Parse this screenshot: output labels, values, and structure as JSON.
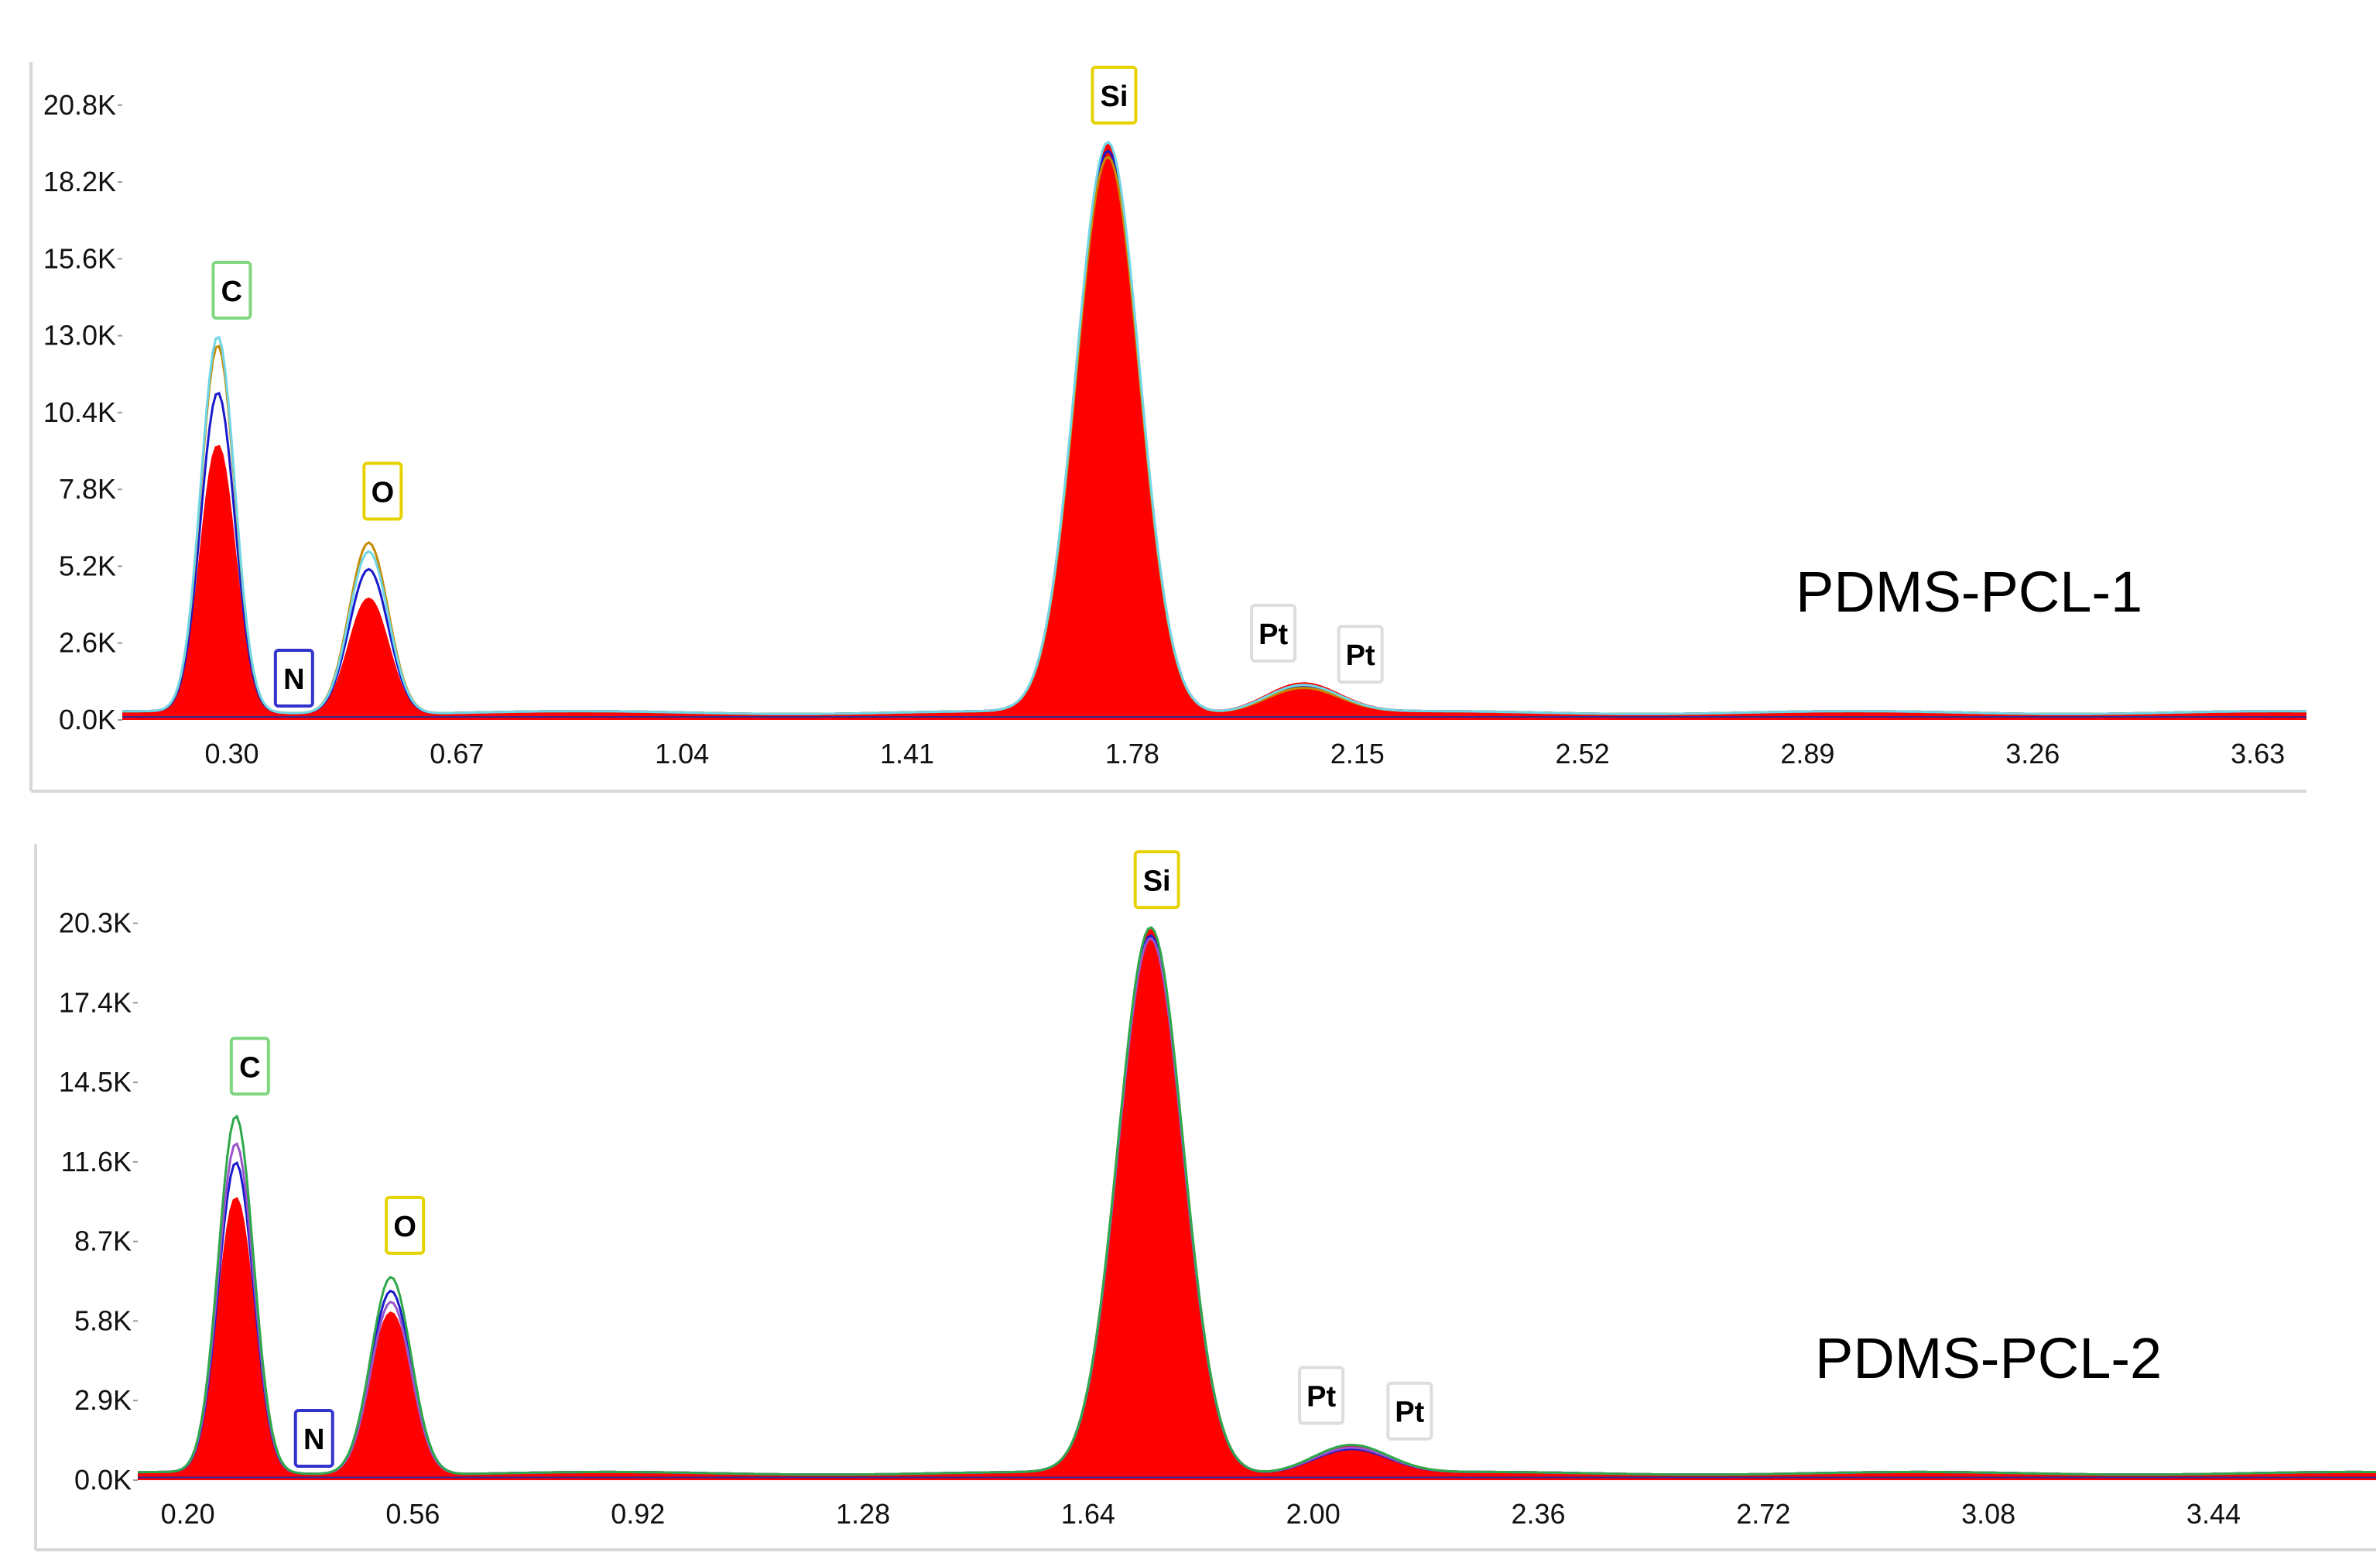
{
  "chart_data": [
    {
      "type": "area",
      "title": "",
      "sample_label": "PDMS-PCL-1",
      "xlabel": "",
      "ylabel": "",
      "xlim": [
        0.12,
        3.71
      ],
      "ylim": [
        0,
        22000
      ],
      "y_ticks": [
        "0.0K",
        "2.6K",
        "5.2K",
        "7.8K",
        "10.4K",
        "13.0K",
        "15.6K",
        "18.2K",
        "20.8K"
      ],
      "y_tick_values": [
        0,
        2600,
        5200,
        7800,
        10400,
        13000,
        15600,
        18200,
        20800
      ],
      "x_ticks": [
        "0.30",
        "0.67",
        "1.04",
        "1.41",
        "1.78",
        "2.15",
        "2.52",
        "2.89",
        "3.26",
        "3.63"
      ],
      "x_tick_values": [
        0.3,
        0.67,
        1.04,
        1.41,
        1.78,
        2.15,
        2.52,
        2.89,
        3.26,
        3.63
      ],
      "peaks": [
        {
          "element": "C",
          "energy": 0.277,
          "counts": 12600,
          "color": "#7fd67f"
        },
        {
          "element": "N",
          "energy": 0.392,
          "counts": 300,
          "color": "#3333cc"
        },
        {
          "element": "O",
          "energy": 0.525,
          "counts": 5800,
          "color": "#e6d200"
        },
        {
          "element": "Si",
          "energy": 1.74,
          "counts": 19200,
          "color": "#e6d200"
        },
        {
          "element": "Pt",
          "energy": 2.05,
          "counts": 1000,
          "color": "#dddddd"
        },
        {
          "element": "Pt",
          "energy": 2.127,
          "counts": 600,
          "color": "#dddddd"
        }
      ],
      "series": [
        {
          "name": "",
          "color": "#ff0000",
          "fill": true,
          "heights": {
            "C": 9000,
            "O": 3900,
            "Si": 19200,
            "Pt": 1000
          }
        },
        {
          "name": "",
          "color": "#1a1acc",
          "fill": false,
          "heights": {
            "C": 10800,
            "O": 4900,
            "Si": 19000,
            "Pt": 900
          }
        },
        {
          "name": "",
          "color": "#c48a00",
          "fill": false,
          "heights": {
            "C": 12400,
            "O": 5800,
            "Si": 18800,
            "Pt": 850
          }
        },
        {
          "name": "",
          "color": "#6fd6e6",
          "fill": false,
          "heights": {
            "C": 12700,
            "O": 5500,
            "Si": 19300,
            "Pt": 950
          }
        }
      ],
      "baseline": 250
    },
    {
      "type": "area",
      "title": "",
      "sample_label": "PDMS-PCL-2",
      "xlabel": "",
      "ylabel": "",
      "xlim": [
        0.12,
        3.7
      ],
      "ylim": [
        0,
        21500
      ],
      "y_ticks": [
        "0.0K",
        "2.9K",
        "5.8K",
        "8.7K",
        "11.6K",
        "14.5K",
        "17.4K",
        "20.3K"
      ],
      "y_tick_values": [
        0,
        2900,
        5800,
        8700,
        11600,
        14500,
        17400,
        20300
      ],
      "x_ticks": [
        "0.20",
        "0.56",
        "0.92",
        "1.28",
        "1.64",
        "2.00",
        "2.36",
        "2.72",
        "3.08",
        "3.44"
      ],
      "x_tick_values": [
        0.2,
        0.56,
        0.92,
        1.28,
        1.64,
        2.0,
        2.36,
        2.72,
        3.08,
        3.44
      ],
      "peaks": [
        {
          "element": "C",
          "energy": 0.277,
          "counts": 13000,
          "color": "#7fd67f"
        },
        {
          "element": "N",
          "energy": 0.392,
          "counts": 300,
          "color": "#3333cc"
        },
        {
          "element": "O",
          "energy": 0.525,
          "counts": 7200,
          "color": "#e6d200"
        },
        {
          "element": "Si",
          "energy": 1.74,
          "counts": 19800,
          "color": "#e6d200"
        },
        {
          "element": "Pt",
          "energy": 2.05,
          "counts": 1000,
          "color": "#dddddd"
        },
        {
          "element": "Pt",
          "energy": 2.127,
          "counts": 600,
          "color": "#dddddd"
        }
      ],
      "series": [
        {
          "name": "",
          "color": "#ff0000",
          "fill": true,
          "heights": {
            "C": 10000,
            "O": 5900,
            "Si": 19800,
            "Pt": 1000
          }
        },
        {
          "name": "",
          "color": "#1a1acc",
          "fill": false,
          "heights": {
            "C": 11300,
            "O": 6700,
            "Si": 19600,
            "Pt": 900
          }
        },
        {
          "name": "",
          "color": "#9955cc",
          "fill": false,
          "heights": {
            "C": 12000,
            "O": 6300,
            "Si": 19500,
            "Pt": 950
          }
        },
        {
          "name": "",
          "color": "#2ea84a",
          "fill": false,
          "heights": {
            "C": 13000,
            "O": 7200,
            "Si": 19900,
            "Pt": 1050
          }
        }
      ],
      "baseline": 250
    }
  ]
}
